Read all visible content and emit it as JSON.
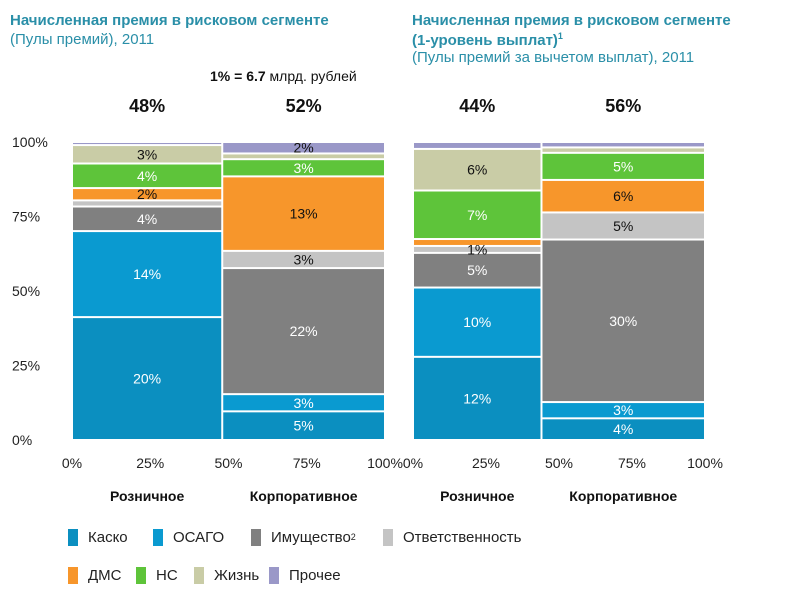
{
  "colors": {
    "Каско": "#0b8fc0",
    "ОСАГО": "#0a9ad0",
    "Имущество": "#808080",
    "Ответственность": "#c4c4c4",
    "ДМС": "#f7962b",
    "НС": "#5ec43a",
    "Жизнь": "#c9cca6",
    "Прочее": "#9a98c8"
  },
  "legend": [
    {
      "key": "Каско",
      "label": "Каско"
    },
    {
      "key": "ОСАГО",
      "label": "ОСАГО"
    },
    {
      "key": "Имущество",
      "label": "Имущество",
      "sup": "2"
    },
    {
      "key": "Ответственность",
      "label": "Ответственность"
    },
    {
      "key": "ДМС",
      "label": "ДМС"
    },
    {
      "key": "НС",
      "label": "НС"
    },
    {
      "key": "Жизнь",
      "label": "Жизнь"
    },
    {
      "key": "Прочее",
      "label": "Прочее"
    }
  ],
  "note": {
    "bold": "1% = 6.7",
    "rest": " млрд. рублей"
  },
  "chart_data": [
    {
      "type": "marimekko",
      "title": "Начисленная премия в рисковом сегменте",
      "subtitle": "(Пулы премий), 2011",
      "y_ticks": [
        "100%",
        "75%",
        "50%",
        "25%",
        "0%"
      ],
      "x_ticks": [
        "0%",
        "25%",
        "50%",
        "75%",
        "100%"
      ],
      "series_order": [
        "Каско",
        "ОСАГО",
        "Имущество",
        "Ответственность",
        "ДМС",
        "НС",
        "Жизнь",
        "Прочее"
      ],
      "columns": [
        {
          "name": "Розничное",
          "share": 48,
          "share_label": "48%",
          "values": [
            20,
            14,
            4,
            1,
            2,
            4,
            3,
            0.5
          ],
          "labels": [
            "20%",
            "14%",
            "4%",
            "",
            "2%",
            "4%",
            "3%",
            ""
          ]
        },
        {
          "name": "Корпоративное",
          "share": 52,
          "share_label": "52%",
          "values": [
            5,
            3,
            22,
            3,
            13,
            3,
            1,
            2
          ],
          "labels": [
            "5%",
            "3%",
            "22%",
            "3%",
            "13%",
            "3%",
            "",
            "2%"
          ]
        }
      ]
    },
    {
      "type": "marimekko",
      "title": "Начисленная премия в рисковом сегменте",
      "title2": "(1-уровень выплат)",
      "title_sup": "1",
      "subtitle": "(Пулы премий за вычетом выплат), 2011",
      "x_ticks": [
        "0%",
        "25%",
        "50%",
        "75%",
        "100%"
      ],
      "series_order": [
        "Каско",
        "ОСАГО",
        "Имущество",
        "Ответственность",
        "ДМС",
        "НС",
        "Жизнь",
        "Прочее"
      ],
      "columns": [
        {
          "name": "Розничное",
          "share": 44,
          "share_label": "44%",
          "values": [
            12,
            10,
            5,
            1,
            1,
            7,
            6,
            1
          ],
          "labels": [
            "12%",
            "10%",
            "5%",
            "1%",
            "",
            "7%",
            "6%",
            ""
          ]
        },
        {
          "name": "Корпоративное",
          "share": 56,
          "share_label": "56%",
          "values": [
            4,
            3,
            30,
            5,
            6,
            5,
            1,
            1
          ],
          "labels": [
            "4%",
            "3%",
            "30%",
            "5%",
            "6%",
            "5%",
            "",
            ""
          ]
        }
      ]
    }
  ]
}
